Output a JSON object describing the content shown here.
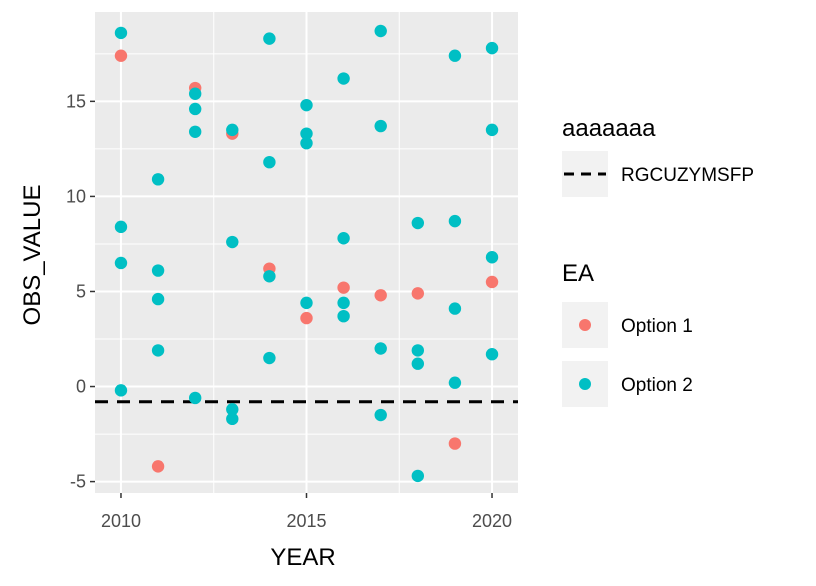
{
  "chart_data": {
    "type": "scatter",
    "xlabel": "YEAR",
    "ylabel": "OBS_VALUE",
    "xlim": [
      2009.3,
      2020.7
    ],
    "ylim": [
      -5.6,
      19.7
    ],
    "xticks": [
      2010,
      2015,
      2020
    ],
    "yticks": [
      -5,
      0,
      5,
      10,
      15
    ],
    "grid": true,
    "legend_placement": "right",
    "hline": {
      "y": -0.8,
      "linetype": "dashed",
      "color": "#000000",
      "legend_title": "aaaaaaa",
      "label": "RGCUZYMSFP"
    },
    "color_legend_title": "EA",
    "series": [
      {
        "name": "Option 1",
        "color": "#F8766D",
        "points": [
          [
            2010,
            17.4
          ],
          [
            2011,
            -4.2
          ],
          [
            2012,
            15.7
          ],
          [
            2013,
            13.3
          ],
          [
            2014,
            6.2
          ],
          [
            2015,
            3.6
          ],
          [
            2016,
            5.2
          ],
          [
            2017,
            4.8
          ],
          [
            2018,
            4.9
          ],
          [
            2019,
            -3.0
          ],
          [
            2020,
            5.5
          ]
        ]
      },
      {
        "name": "Option 2",
        "color": "#00BFC4",
        "points": [
          [
            2010,
            18.6
          ],
          [
            2010,
            8.4
          ],
          [
            2010,
            6.5
          ],
          [
            2010,
            -0.2
          ],
          [
            2011,
            10.9
          ],
          [
            2011,
            6.1
          ],
          [
            2011,
            4.6
          ],
          [
            2011,
            1.9
          ],
          [
            2012,
            15.4
          ],
          [
            2012,
            14.6
          ],
          [
            2012,
            13.4
          ],
          [
            2012,
            -0.6
          ],
          [
            2013,
            13.5
          ],
          [
            2013,
            7.6
          ],
          [
            2013,
            -1.2
          ],
          [
            2013,
            -1.7
          ],
          [
            2014,
            18.3
          ],
          [
            2014,
            11.8
          ],
          [
            2014,
            5.8
          ],
          [
            2014,
            1.5
          ],
          [
            2015,
            14.8
          ],
          [
            2015,
            13.3
          ],
          [
            2015,
            12.8
          ],
          [
            2015,
            4.4
          ],
          [
            2016,
            16.2
          ],
          [
            2016,
            7.8
          ],
          [
            2016,
            4.4
          ],
          [
            2016,
            3.7
          ],
          [
            2017,
            18.7
          ],
          [
            2017,
            13.7
          ],
          [
            2017,
            2.0
          ],
          [
            2017,
            -1.5
          ],
          [
            2018,
            8.6
          ],
          [
            2018,
            1.9
          ],
          [
            2018,
            1.2
          ],
          [
            2018,
            -4.7
          ],
          [
            2019,
            17.4
          ],
          [
            2019,
            8.7
          ],
          [
            2019,
            4.1
          ],
          [
            2019,
            0.2
          ],
          [
            2020,
            17.8
          ],
          [
            2020,
            13.5
          ],
          [
            2020,
            6.8
          ],
          [
            2020,
            1.7
          ]
        ]
      }
    ]
  }
}
